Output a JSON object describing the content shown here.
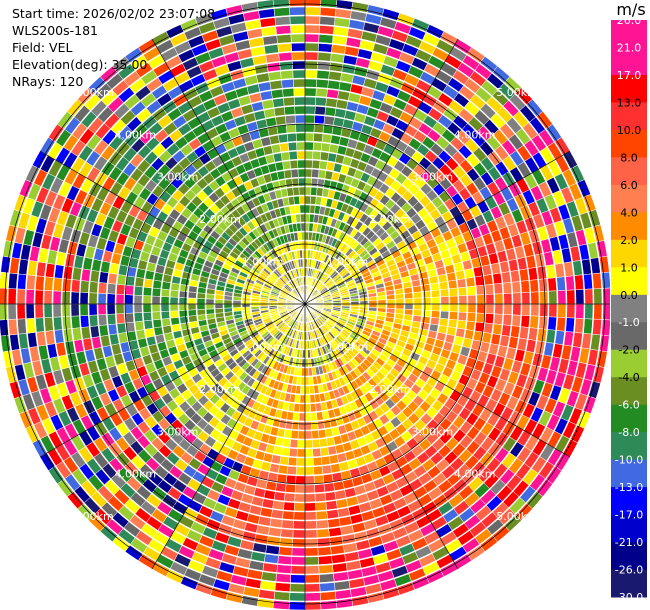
{
  "header": {
    "start_time": "Start time: 2026/02/02 23:07:08",
    "instrument": "WLS200s-181",
    "field": "Field: VEL",
    "elevation": "Elevation(deg): 35.00",
    "nrays": "NRays: 120"
  },
  "colorbar": {
    "unit": "m/s",
    "ticks": [
      "26.0",
      "21.0",
      "17.0",
      "13.0",
      "10.0",
      "8.0",
      "6.0",
      "4.0",
      "2.0",
      "1.0",
      "0.0",
      "-1.0",
      "-2.0",
      "-4.0",
      "-6.0",
      "-8.0",
      "-10.0",
      "-13.0",
      "-17.0",
      "-21.0",
      "-26.0",
      "-30.0"
    ],
    "colors": [
      "#ff1493",
      "#ff1493",
      "#ff0000",
      "#ff3030",
      "#ff4500",
      "#ff6347",
      "#ff7f50",
      "#ff8c00",
      "#ffd700",
      "#ffff00",
      "#808080",
      "#696969",
      "#9acd32",
      "#6b8e23",
      "#228b22",
      "#2e8b57",
      "#4169e1",
      "#0000ff",
      "#0000cd",
      "#00008b",
      "#191970"
    ]
  },
  "chart_data": {
    "type": "ppi",
    "field": "VEL",
    "units": "m/s",
    "elevation_deg": 35.0,
    "nrays": 120,
    "ring_labels": [
      "1.00km",
      "2.00km",
      "3.00km",
      "4.00km",
      "5.00km"
    ],
    "ring_ranges_km": [
      1,
      2,
      3,
      4,
      5
    ],
    "max_range_km": 5.1,
    "velocity_pattern": {
      "near_core": "0.0 to 2.0",
      "towards_east_south": "4.0 to 26.0",
      "towards_west_north": "-2.0 to -8.0",
      "outer_ring": "mixed -30.0 to 26.0"
    }
  }
}
